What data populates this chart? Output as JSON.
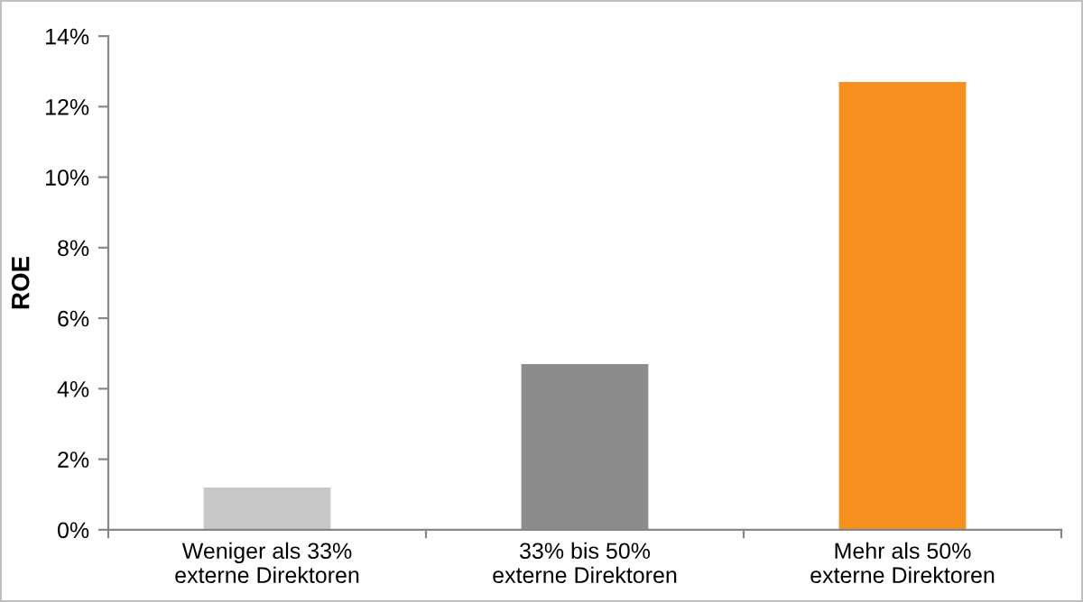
{
  "chart_data": {
    "type": "bar",
    "ylabel": "ROE",
    "categories": [
      "Weniger als 33%\nexterne Direktoren",
      "33% bis 50%\nexterne Direktoren",
      "Mehr als 50%\nexterne Direktoren"
    ],
    "values": [
      1.2,
      4.7,
      12.7
    ],
    "colors": [
      "#c8c8c8",
      "#8c8c8c",
      "#f7901e"
    ],
    "ylim": [
      0,
      14
    ],
    "yticks": [
      {
        "value": 0,
        "label": "0%"
      },
      {
        "value": 2,
        "label": "2%"
      },
      {
        "value": 4,
        "label": "4%"
      },
      {
        "value": 6,
        "label": "6%"
      },
      {
        "value": 8,
        "label": "8%"
      },
      {
        "value": 10,
        "label": "10%"
      },
      {
        "value": 12,
        "label": "12%"
      },
      {
        "value": 14,
        "label": "14%"
      }
    ],
    "grid": false,
    "legend": false
  }
}
